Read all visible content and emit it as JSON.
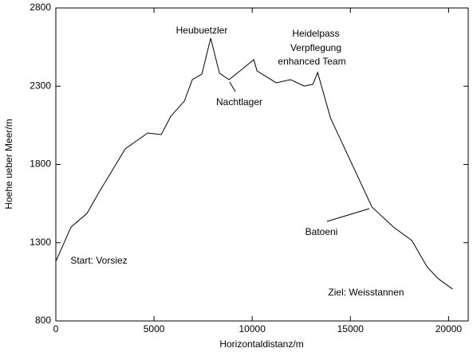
{
  "chart_data": {
    "type": "line",
    "x_label": "Horizontaldistanz/m",
    "y_label": "Hoehe ueber Meer/m",
    "x": [
      0,
      773,
      1585,
      2236,
      3537,
      4675,
      5366,
      5854,
      6545,
      6951,
      7439,
      7886,
      8333,
      8821,
      9431,
      10081,
      10244,
      11220,
      11951,
      12642,
      13089,
      13333,
      13984,
      16098,
      17195,
      18130,
      18902,
      19472,
      20203
    ],
    "series": [
      {
        "color": "#000000",
        "values": [
          1180,
          1400,
          1487,
          1630,
          1900,
          2001,
          1991,
          2108,
          2205,
          2342,
          2378,
          2607,
          2383,
          2342,
          2403,
          2470,
          2398,
          2322,
          2342,
          2301,
          2312,
          2388,
          2098,
          1528,
          1400,
          1314,
          1146,
          1070,
          1004
        ]
      }
    ],
    "xlim": [
      0,
      21000
    ],
    "xticks": [
      0,
      5000,
      10000,
      15000,
      20000
    ],
    "ylim": [
      800,
      2800
    ],
    "yticks": [
      800,
      1300,
      1800,
      2300,
      2800
    ],
    "grid": false,
    "annotations": [
      "Heubuetzler",
      "Nachtlager",
      "Heidelpass",
      "Verpflegung",
      "enhanced Team",
      "Batoeni",
      "Start: Vorsiez",
      "Ziel: Weisstannen"
    ]
  }
}
